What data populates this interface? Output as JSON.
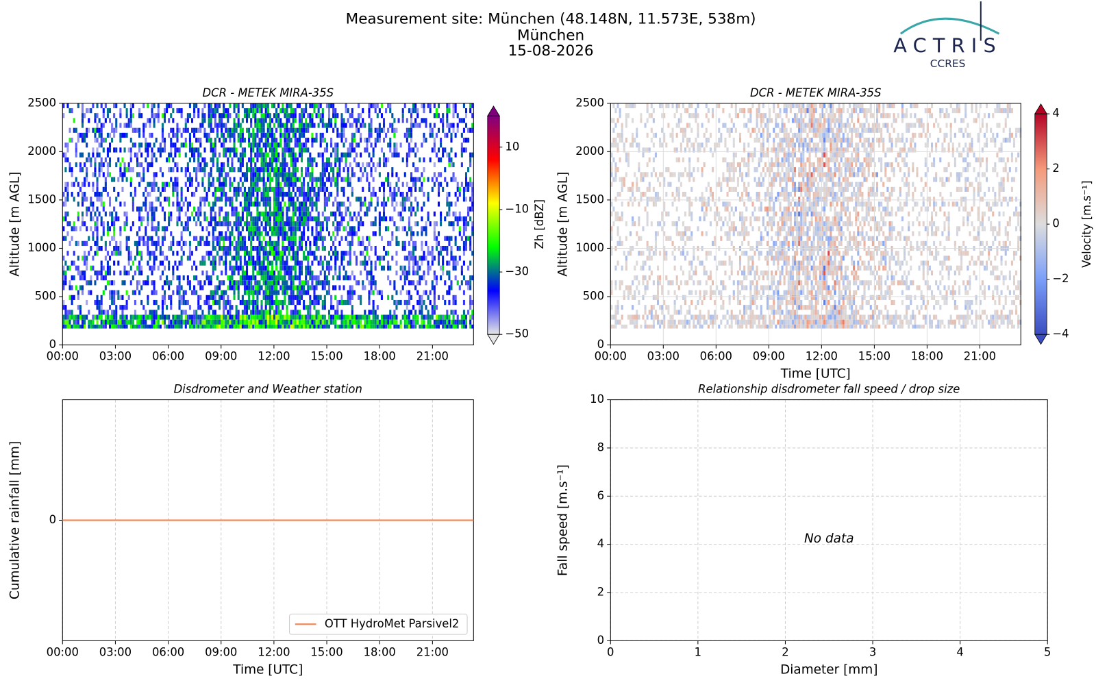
{
  "header": {
    "title": "Measurement site: München (48.148N, 11.573E, 538m)",
    "site": "München",
    "date": "15-08-2026"
  },
  "logo": {
    "name": "ACTRIS",
    "subtitle": "CCRES"
  },
  "chart_data": [
    {
      "type": "heatmap",
      "title": "DCR - METEK MIRA-35S",
      "y_label": "Altitude [m AGL]",
      "xlim": [
        0,
        23.33
      ],
      "xticks": [
        {
          "value": 0,
          "label": "00:00"
        },
        {
          "value": 3,
          "label": "03:00"
        },
        {
          "value": 6,
          "label": "06:00"
        },
        {
          "value": 9,
          "label": "09:00"
        },
        {
          "value": 12,
          "label": "12:00"
        },
        {
          "value": 15,
          "label": "15:00"
        },
        {
          "value": 18,
          "label": "18:00"
        },
        {
          "value": 21,
          "label": "21:00"
        }
      ],
      "ylim": [
        0,
        2500
      ],
      "yticks": [
        0,
        500,
        1000,
        1500,
        2000,
        2500
      ],
      "grid": false,
      "colorbar": {
        "label": "Zh [dBZ]",
        "lim": [
          -50,
          20
        ],
        "ticks": [
          {
            "value": -50,
            "label": "−50"
          },
          {
            "value": -30,
            "label": "−30"
          },
          {
            "value": -10,
            "label": "−10"
          },
          10
        ],
        "extend": "both",
        "colors": [
          "#e6e6e6",
          "#0000ff",
          "#00ff00",
          "#ffff00",
          "#ff0000",
          "#800080"
        ]
      }
    },
    {
      "type": "heatmap",
      "title": "DCR - METEK MIRA-35S",
      "x_label": "Time [UTC]",
      "y_label": "Altitude [m AGL]",
      "xlim": [
        0,
        23.33
      ],
      "xticks": [
        {
          "value": 0,
          "label": "00:00"
        },
        {
          "value": 3,
          "label": "03:00"
        },
        {
          "value": 6,
          "label": "06:00"
        },
        {
          "value": 9,
          "label": "09:00"
        },
        {
          "value": 12,
          "label": "12:00"
        },
        {
          "value": 15,
          "label": "15:00"
        },
        {
          "value": 18,
          "label": "18:00"
        },
        {
          "value": 21,
          "label": "21:00"
        }
      ],
      "ylim": [
        0,
        2500
      ],
      "yticks": [
        0,
        500,
        1000,
        1500,
        2000,
        2500
      ],
      "grid": true,
      "grid_linestyle": "solid",
      "colorbar": {
        "label": "Velocity [m.s⁻¹]",
        "lim": [
          -4,
          4
        ],
        "ticks": [
          {
            "value": -4,
            "label": "−4"
          },
          {
            "value": -2,
            "label": "−2"
          },
          0,
          2,
          4
        ],
        "extend": "both",
        "colors": [
          "#3b4cc0",
          "#7b9ff9",
          "#dddddd",
          "#f49a7b",
          "#b40426"
        ]
      }
    },
    {
      "type": "line",
      "title": "Disdrometer and Weather station",
      "x_label": "Time [UTC]",
      "y_label": "Cumulative rainfall [mm]",
      "x": [
        0,
        23.33
      ],
      "series": [
        {
          "name": "OTT HydroMet Parsivel2",
          "color": "#f08a5d",
          "values": [
            0,
            0
          ]
        }
      ],
      "xlim": [
        0,
        23.33
      ],
      "xticks": [
        {
          "value": 0,
          "label": "00:00"
        },
        {
          "value": 3,
          "label": "03:00"
        },
        {
          "value": 6,
          "label": "06:00"
        },
        {
          "value": 9,
          "label": "09:00"
        },
        {
          "value": 12,
          "label": "12:00"
        },
        {
          "value": 15,
          "label": "15:00"
        },
        {
          "value": 18,
          "label": "18:00"
        },
        {
          "value": 21,
          "label": "21:00"
        }
      ],
      "ylim": [
        -0.055,
        0.055
      ],
      "yticks": [
        0
      ],
      "grid": true,
      "grid_linestyle": "dashed",
      "legend": "lower right"
    },
    {
      "type": "scatter",
      "title": "Relationship disdrometer fall speed / drop size",
      "x_label": "Diameter [mm]",
      "y_label": "Fall speed [m.s⁻¹]",
      "annotation": "No data",
      "xlim": [
        0,
        5
      ],
      "xticks": [
        0,
        1,
        2,
        3,
        4,
        5
      ],
      "ylim": [
        0,
        10
      ],
      "yticks": [
        0,
        2,
        4,
        6,
        8,
        10
      ],
      "grid": true,
      "grid_linestyle": "dashed"
    }
  ]
}
